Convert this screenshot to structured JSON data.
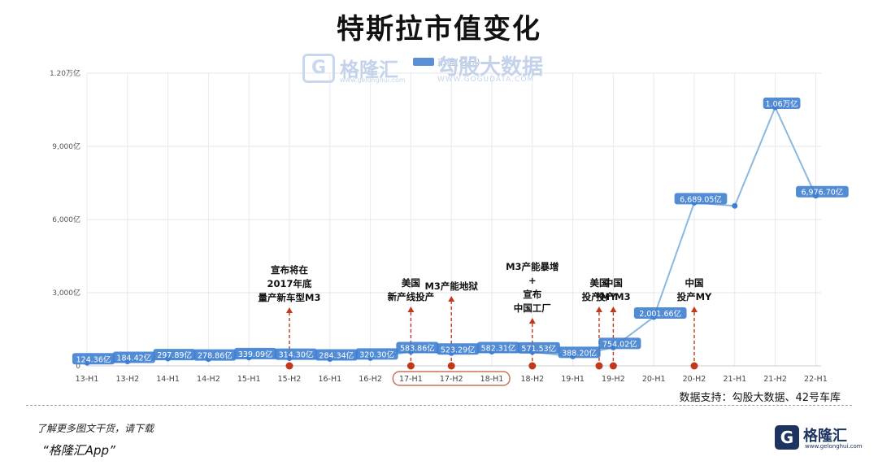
{
  "page": {
    "title": "特斯拉市值变化",
    "source": "数据支持：勾股大数据、42号车库",
    "footer_line1": "了解更多图文干货，请下载",
    "footer_line2": "“格隆汇App”",
    "brand_name": "格隆汇",
    "brand_url": "www.gelonghui.com",
    "watermark_left": "格隆汇",
    "watermark_left_url": "www.gelonghui.com",
    "watermark_right": "勾股大数据",
    "watermark_right_url": "WWW.GOGUDATA.COM",
    "legend_label": "市值(亿元)"
  },
  "chart_data": {
    "type": "line",
    "categories": [
      "13-H1",
      "13-H2",
      "14-H1",
      "14-H2",
      "15-H1",
      "15-H2",
      "16-H1",
      "16-H2",
      "17-H1",
      "17-H2",
      "18-H1",
      "18-H2",
      "19-H1",
      "19-H2",
      "20-H1",
      "20-H2",
      "21-H1",
      "21-H2",
      "22-H1"
    ],
    "values": [
      124.36,
      184.42,
      297.89,
      278.86,
      339.09,
      314.3,
      284.34,
      320.3,
      583.86,
      523.29,
      582.31,
      571.53,
      388.2,
      754.02,
      2001.66,
      6689.05,
      6560,
      10600,
      6976.7
    ],
    "point_labels": [
      "124.36亿",
      "184.42亿",
      "297.89亿",
      "278.86亿",
      "339.09亿",
      "314.30亿",
      "284.34亿",
      "320.30亿",
      "583.86亿",
      "523.29亿",
      "582.31亿",
      "571.53亿",
      "388.20亿",
      "754.02亿",
      "2,001.66亿",
      "6,689.05亿",
      "",
      "1.06万亿",
      "6,976.70亿"
    ],
    "yticks": [
      "0",
      "3,000亿",
      "6,000亿",
      "9,000亿",
      "1.20万亿"
    ],
    "ylim": [
      0,
      12000
    ],
    "grid": true,
    "legend_position": "top-center",
    "colors": {
      "line": "#8ab8df",
      "point": "#3f7fd0",
      "label_bg": "#3f7fd0",
      "marker": "#c0391b",
      "highlight": "#c9725a"
    },
    "highlight_range": [
      "17-H1",
      "18-H1"
    ],
    "annotations": [
      {
        "category": "15-H2",
        "text": [
          "宣布将在",
          "2017年底",
          "量产新车型M3"
        ]
      },
      {
        "category": "17-H1",
        "text": [
          "美国",
          "新产线投产"
        ]
      },
      {
        "category": "17-H2",
        "text": [
          "M3产能地狱"
        ]
      },
      {
        "category": "18-H2",
        "text": [
          "M3产能暴增",
          "+",
          "宣布",
          "中国工厂"
        ]
      },
      {
        "category": "19-H2",
        "text": [
          "美国",
          "投产MY"
        ],
        "offset": -0.35
      },
      {
        "category": "19-H2",
        "text": [
          "中国",
          "投产M3"
        ]
      },
      {
        "category": "20-H2",
        "text": [
          "中国",
          "投产MY"
        ]
      }
    ]
  }
}
